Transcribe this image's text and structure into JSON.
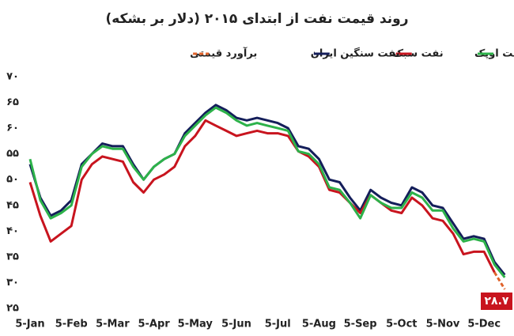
{
  "chart_data": {
    "type": "line",
    "title": "روند قیمت نفت از ابتدای ۲۰۱۵ (دلار بر بشکه)",
    "categories": [
      "5-Jan",
      null,
      null,
      null,
      "5-Feb",
      null,
      null,
      null,
      "5-Mar",
      null,
      null,
      null,
      "5-Apr",
      null,
      null,
      null,
      "5-May",
      null,
      null,
      null,
      "5-Jun",
      null,
      null,
      null,
      "5-Jul",
      null,
      null,
      null,
      "5-Aug",
      null,
      null,
      null,
      "5-Sep",
      null,
      null,
      null,
      "5-Oct",
      null,
      null,
      null,
      "5-Nov",
      null,
      null,
      null,
      "5-Dec",
      null,
      null
    ],
    "series": [
      {
        "name": "نفت اوپک",
        "color": "#2db24a",
        "values": [
          54,
          46,
          42.5,
          43.5,
          45,
          52.5,
          55,
          56.5,
          56,
          56,
          52.5,
          50,
          52.5,
          54,
          55,
          58.5,
          60.5,
          62.5,
          64,
          63,
          61.5,
          60.5,
          61,
          60.5,
          60,
          59.5,
          55.5,
          55,
          53,
          48.5,
          48,
          45.5,
          42.5,
          47,
          45.5,
          44.5,
          44.5,
          47.5,
          46.5,
          44,
          44,
          40.5,
          38,
          38.5,
          38,
          33.5,
          31
        ]
      },
      {
        "name": "نفت سبک",
        "color": "#c8141e",
        "values": [
          49.5,
          43,
          38,
          39.5,
          41,
          50,
          53,
          54.5,
          54,
          53.5,
          49.5,
          47.5,
          50,
          51,
          52.5,
          56.5,
          58.5,
          61.5,
          60.5,
          59.5,
          58.5,
          59,
          59.5,
          59,
          59,
          58.5,
          55.5,
          54.5,
          52.5,
          48,
          47.5,
          45.5,
          43.5,
          47,
          45.5,
          44,
          43.5,
          46.5,
          45,
          42.5,
          42,
          39.5,
          35.5,
          36,
          36,
          32,
          null
        ]
      },
      {
        "name": "نفت سنگین ایران",
        "color": "#141e5a",
        "values": [
          53,
          46.5,
          43,
          44,
          46,
          53,
          55,
          57,
          56.5,
          56.5,
          53,
          50,
          52.5,
          54,
          55,
          59,
          61,
          63,
          64.5,
          63.5,
          62,
          61.5,
          62,
          61.5,
          61,
          60,
          56.5,
          56,
          54,
          50,
          49.5,
          46.5,
          44,
          48,
          46.5,
          45.5,
          45,
          48.5,
          47.5,
          45,
          44.5,
          41.5,
          38.5,
          39,
          38.5,
          34,
          31.5
        ]
      },
      {
        "name": "برآورد قیمتی",
        "color": "#e0622a",
        "dashed": true,
        "values": [
          null,
          null,
          null,
          null,
          null,
          null,
          null,
          null,
          null,
          null,
          null,
          null,
          null,
          null,
          null,
          null,
          null,
          null,
          null,
          null,
          null,
          null,
          null,
          null,
          null,
          null,
          null,
          null,
          null,
          null,
          null,
          null,
          null,
          null,
          null,
          null,
          null,
          null,
          null,
          null,
          null,
          null,
          null,
          null,
          null,
          32,
          28.7
        ],
        "value_labels": [
          null,
          null,
          null,
          null,
          null,
          null,
          null,
          null,
          null,
          null,
          null,
          null,
          null,
          null,
          null,
          null,
          null,
          null,
          null,
          null,
          null,
          null,
          null,
          null,
          null,
          null,
          null,
          null,
          null,
          null,
          null,
          null,
          null,
          null,
          null,
          null,
          null,
          null,
          null,
          null,
          null,
          null,
          null,
          null,
          null,
          null,
          "۲۸.۷"
        ]
      }
    ],
    "ylim": [
      25,
      70
    ],
    "yticks": [
      {
        "value": 70,
        "label": "۷۰"
      },
      {
        "value": 65,
        "label": "۶۵"
      },
      {
        "value": 60,
        "label": "۶۰"
      },
      {
        "value": 55,
        "label": "۵۵"
      },
      {
        "value": 50,
        "label": "۵۰"
      },
      {
        "value": 45,
        "label": "۴۵"
      },
      {
        "value": 40,
        "label": "۴۰"
      },
      {
        "value": 35,
        "label": "۳۵"
      },
      {
        "value": 30,
        "label": "۳۰"
      },
      {
        "value": 25,
        "label": "۲۵"
      }
    ],
    "grid": false
  }
}
